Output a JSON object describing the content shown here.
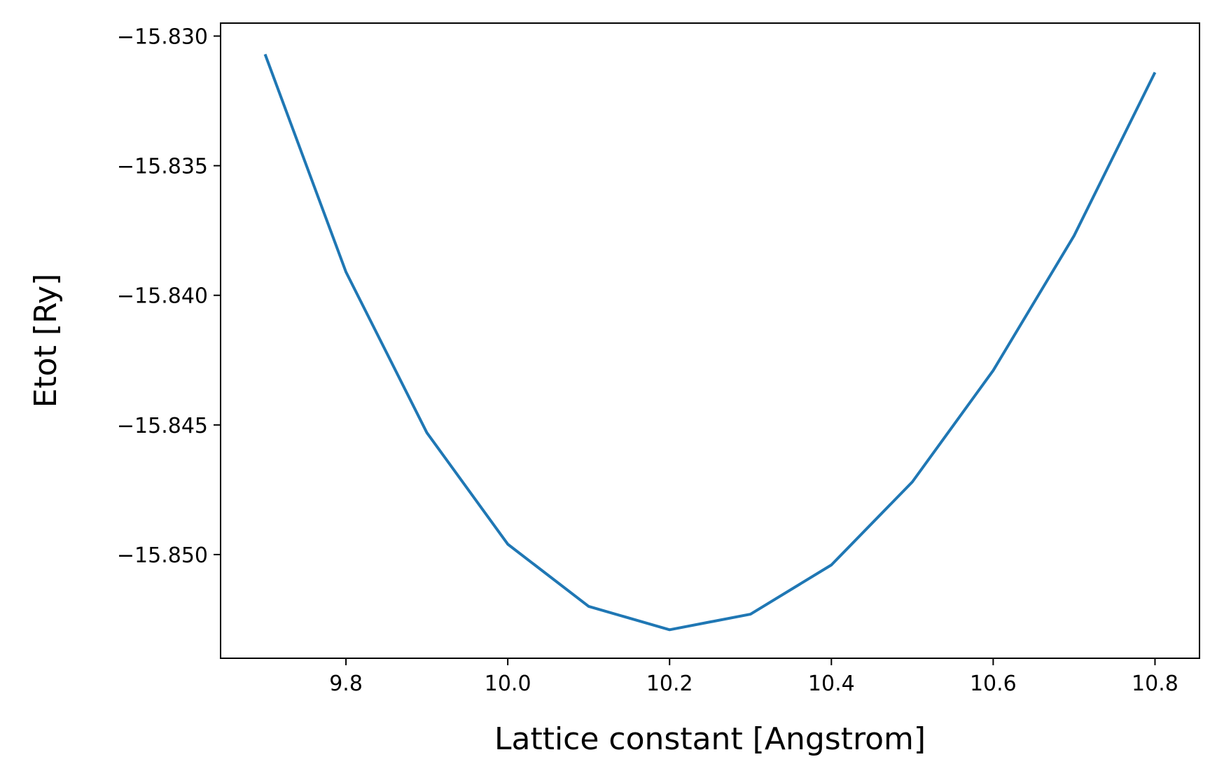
{
  "chart_data": {
    "type": "line",
    "title": "",
    "xlabel": "Lattice constant [Angstrom]",
    "ylabel": "Etot [Ry]",
    "xlim": [
      9.645,
      10.855
    ],
    "ylim": [
      -15.854,
      -15.8295
    ],
    "x_ticks": [
      9.8,
      10.0,
      10.2,
      10.4,
      10.6,
      10.8
    ],
    "x_tick_labels": [
      "9.8",
      "10.0",
      "10.2",
      "10.4",
      "10.6",
      "10.8"
    ],
    "y_ticks": [
      -15.83,
      -15.835,
      -15.84,
      -15.845,
      -15.85
    ],
    "y_tick_labels": [
      "−15.830",
      "−15.835",
      "−15.840",
      "−15.845",
      "−15.850"
    ],
    "grid": false,
    "series": [
      {
        "color": "#1f77b4",
        "x": [
          9.7,
          9.8,
          9.9,
          10.0,
          10.1,
          10.2,
          10.3,
          10.4,
          10.5,
          10.6,
          10.7,
          10.8
        ],
        "y": [
          -15.8307,
          -15.8391,
          -15.8453,
          -15.8496,
          -15.852,
          -15.8529,
          -15.8523,
          -15.8504,
          -15.8472,
          -15.8429,
          -15.8377,
          -15.8314
        ]
      }
    ]
  }
}
